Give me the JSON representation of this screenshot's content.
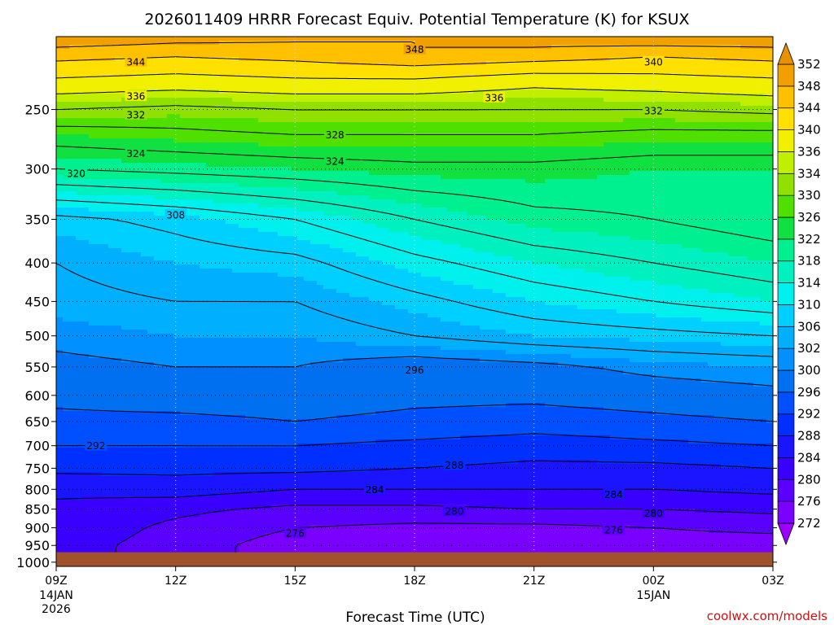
{
  "chart_data": {
    "type": "heatmap",
    "title": "2026011409 HRRR Forecast Equiv. Potential Temperature (K) for KSUX",
    "xlabel": "Forecast Time (UTC)",
    "ylabel": "",
    "x_ticks": [
      {
        "label": "09Z",
        "sub": [
          "14JAN",
          "2026"
        ]
      },
      {
        "label": "12Z",
        "sub": []
      },
      {
        "label": "15Z",
        "sub": []
      },
      {
        "label": "18Z",
        "sub": []
      },
      {
        "label": "21Z",
        "sub": []
      },
      {
        "label": "00Z",
        "sub": [
          "15JAN"
        ]
      },
      {
        "label": "03Z",
        "sub": []
      }
    ],
    "x_hours": [
      0,
      3,
      6,
      9,
      12,
      15,
      18
    ],
    "y_ticks": [
      250,
      300,
      350,
      400,
      450,
      500,
      550,
      600,
      650,
      700,
      750,
      800,
      850,
      900,
      950,
      1000
    ],
    "y_range": [
      200,
      1013
    ],
    "y_scale": "log-pressure",
    "ground_pressure": 970,
    "grid": true,
    "colorbar": {
      "levels": [
        272,
        276,
        280,
        284,
        288,
        292,
        296,
        300,
        302,
        306,
        310,
        314,
        318,
        322,
        326,
        330,
        334,
        336,
        340,
        344,
        348,
        352
      ],
      "colors": [
        "#9b00ff",
        "#7a00ff",
        "#5a00ff",
        "#3a00ff",
        "#1a14ff",
        "#0030ff",
        "#0050ff",
        "#0070f0",
        "#0090ff",
        "#00b0ff",
        "#00d0ff",
        "#00f0ee",
        "#00f0c0",
        "#00f090",
        "#10e040",
        "#50e000",
        "#90e000",
        "#c0f000",
        "#f0f000",
        "#ffe000",
        "#ffc000",
        "#f0a000",
        "#e89000"
      ]
    },
    "contour_labels": [
      {
        "value": "348",
        "hour": 9.0,
        "p": 208
      },
      {
        "value": "344",
        "hour": 2.0,
        "p": 216
      },
      {
        "value": "340",
        "hour": 15.0,
        "p": 216
      },
      {
        "value": "336",
        "hour": 2.0,
        "p": 240
      },
      {
        "value": "336",
        "hour": 11.0,
        "p": 241
      },
      {
        "value": "332",
        "hour": 2.0,
        "p": 254
      },
      {
        "value": "332",
        "hour": 15.0,
        "p": 251
      },
      {
        "value": "328",
        "hour": 7.0,
        "p": 270
      },
      {
        "value": "324",
        "hour": 2.0,
        "p": 286
      },
      {
        "value": "324",
        "hour": 7.0,
        "p": 293
      },
      {
        "value": "320",
        "hour": 0.5,
        "p": 304
      },
      {
        "value": "308",
        "hour": 3.0,
        "p": 345
      },
      {
        "value": "296",
        "hour": 9.0,
        "p": 555
      },
      {
        "value": "292",
        "hour": 1.0,
        "p": 700
      },
      {
        "value": "288",
        "hour": 10.0,
        "p": 743
      },
      {
        "value": "284",
        "hour": 8.0,
        "p": 800
      },
      {
        "value": "284",
        "hour": 14.0,
        "p": 812
      },
      {
        "value": "280",
        "hour": 10.0,
        "p": 855
      },
      {
        "value": "280",
        "hour": 15.0,
        "p": 860
      },
      {
        "value": "276",
        "hour": 6.0,
        "p": 915
      },
      {
        "value": "276",
        "hour": 14.0,
        "p": 905
      }
    ],
    "profile": [
      {
        "p": 200,
        "th": [
          352,
          350,
          349,
          348,
          350,
          352,
          352
        ]
      },
      {
        "p": 210,
        "th": [
          346,
          345,
          346,
          348,
          347,
          345,
          346
        ]
      },
      {
        "p": 230,
        "th": [
          339,
          338,
          339,
          339,
          337,
          338,
          339
        ]
      },
      {
        "p": 250,
        "th": [
          332,
          331,
          332,
          332,
          332,
          332,
          333
        ]
      },
      {
        "p": 270,
        "th": [
          326,
          327,
          328,
          328,
          328,
          327,
          327
        ]
      },
      {
        "p": 300,
        "th": [
          320,
          321,
          322,
          323,
          323,
          322,
          322
        ]
      },
      {
        "p": 350,
        "th": [
          307,
          309,
          312,
          316,
          319,
          320,
          322
        ]
      },
      {
        "p": 400,
        "th": [
          304,
          306,
          307,
          311,
          314,
          316,
          318
        ]
      },
      {
        "p": 450,
        "th": [
          303,
          304,
          304,
          307,
          310,
          312,
          314
        ]
      },
      {
        "p": 500,
        "th": [
          301,
          302,
          302,
          304,
          306,
          307,
          308
        ]
      },
      {
        "p": 550,
        "th": [
          299,
          300,
          300,
          298,
          299,
          301,
          302
        ]
      },
      {
        "p": 600,
        "th": [
          297,
          298,
          298,
          297,
          297,
          298,
          299
        ]
      },
      {
        "p": 650,
        "th": [
          295,
          295,
          296,
          295,
          294,
          295,
          296
        ]
      },
      {
        "p": 700,
        "th": [
          292,
          292,
          292,
          291,
          290,
          291,
          292
        ]
      },
      {
        "p": 750,
        "th": [
          289,
          289,
          289,
          288,
          287,
          287,
          288
        ]
      },
      {
        "p": 800,
        "th": [
          285,
          286,
          284,
          284,
          284,
          284,
          285
        ]
      },
      {
        "p": 850,
        "th": [
          283,
          281,
          279,
          279,
          280,
          280,
          281
        ]
      },
      {
        "p": 900,
        "th": [
          283,
          279,
          276,
          275,
          275,
          276,
          277
        ]
      },
      {
        "p": 950,
        "th": [
          282,
          278,
          274,
          273,
          273,
          274,
          274
        ]
      },
      {
        "p": 1000,
        "th": [
          282,
          278,
          274,
          273,
          273,
          274,
          274
        ]
      }
    ]
  },
  "credit": "coolwx.com/models"
}
